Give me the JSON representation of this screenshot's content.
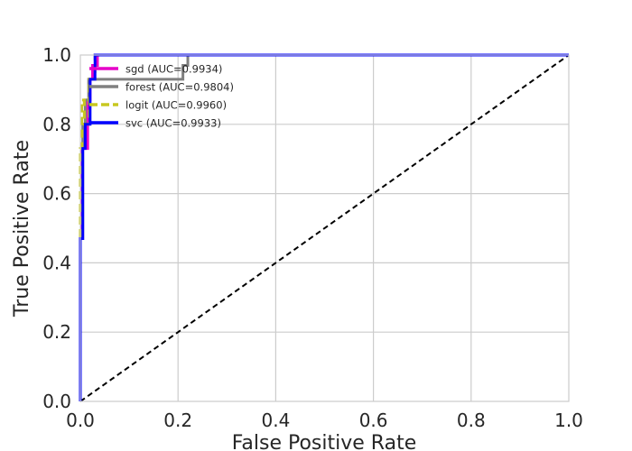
{
  "chart_data": {
    "type": "line",
    "title": "",
    "xlabel": "False Positive Rate",
    "ylabel": "True Positive Rate",
    "xlim": [
      0,
      1
    ],
    "ylim": [
      0,
      1
    ],
    "xticks": [
      "0.0",
      "0.2",
      "0.4",
      "0.6",
      "0.8",
      "1.0"
    ],
    "yticks": [
      "0.0",
      "0.2",
      "0.4",
      "0.6",
      "0.8",
      "1.0"
    ],
    "grid": true,
    "legend_position": "top-left",
    "series": [
      {
        "name": "sgd (AUC=0.9934)",
        "color": "#e600c8",
        "dash": "solid",
        "x": [
          0,
          0,
          0.003,
          0.003,
          0.007,
          0.007,
          0.01,
          0.01,
          0.015,
          0.015,
          0.02,
          0.02,
          0.025,
          0.025,
          0.035,
          0.035,
          1.0
        ],
        "y": [
          0,
          0.47,
          0.47,
          0.73,
          0.73,
          0.8,
          0.8,
          0.73,
          0.73,
          0.87,
          0.87,
          0.93,
          0.93,
          0.97,
          0.97,
          1.0,
          1.0
        ]
      },
      {
        "name": "forest (AUC=0.9804)",
        "color": "#808080",
        "dash": "solid",
        "x": [
          0,
          0,
          0.005,
          0.005,
          0.01,
          0.01,
          0.017,
          0.017,
          0.21,
          0.21,
          0.22,
          0.22,
          1.0
        ],
        "y": [
          0,
          0.47,
          0.47,
          0.8,
          0.8,
          0.87,
          0.87,
          0.93,
          0.93,
          0.97,
          0.97,
          1.0,
          1.0
        ]
      },
      {
        "name": "logit (AUC=0.9960)",
        "color": "#c8c820",
        "dash": "dashed",
        "x": [
          0,
          0,
          0.003,
          0.003,
          0.008,
          0.008,
          0.018,
          0.018,
          0.03,
          0.03,
          1.0
        ],
        "y": [
          0,
          0.73,
          0.73,
          0.87,
          0.87,
          0.8,
          0.8,
          0.93,
          0.93,
          1.0,
          1.0
        ]
      },
      {
        "name": "svc (AUC=0.9933)",
        "color": "#0000ff",
        "dash": "solid",
        "x": [
          0,
          0,
          0.005,
          0.005,
          0.01,
          0.01,
          0.02,
          0.02,
          0.03,
          0.03,
          1.0
        ],
        "y": [
          0,
          0.47,
          0.47,
          0.73,
          0.73,
          0.8,
          0.8,
          0.93,
          0.93,
          1.0,
          1.0
        ]
      },
      {
        "name": "",
        "color": "#000000",
        "dash": "dashed",
        "x": [
          0,
          1
        ],
        "y": [
          0,
          1
        ]
      }
    ]
  }
}
